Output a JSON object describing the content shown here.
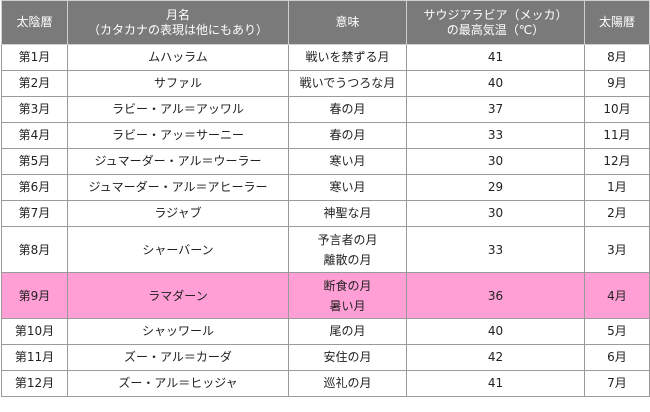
{
  "header": {
    "col1": "太陰暦",
    "col2_line1": "月名",
    "col2_line2": "（カタカナの表現は他にもあり）",
    "col3": "意味",
    "col4_line1": "サウジアラビア（メッカ）",
    "col4_line2": "の最高気温（℃）",
    "col5": "太陽暦"
  },
  "rows": [
    {
      "lunar": "第1月",
      "name": "ムハッラム",
      "meaning": [
        "戦いを禁ずる月"
      ],
      "temp": "41",
      "solar": "8月"
    },
    {
      "lunar": "第2月",
      "name": "サファル",
      "meaning": [
        "戦いでうつろな月"
      ],
      "temp": "40",
      "solar": "9月"
    },
    {
      "lunar": "第3月",
      "name": "ラビー・アル＝アッワル",
      "meaning": [
        "春の月"
      ],
      "temp": "37",
      "solar": "10月"
    },
    {
      "lunar": "第4月",
      "name": "ラビー・アッ＝サーニー",
      "meaning": [
        "春の月"
      ],
      "temp": "33",
      "solar": "11月"
    },
    {
      "lunar": "第5月",
      "name": "ジュマーダー・アル＝ウーラー",
      "meaning": [
        "寒い月"
      ],
      "temp": "30",
      "solar": "12月"
    },
    {
      "lunar": "第6月",
      "name": "ジュマーダー・アル＝アヒーラー",
      "meaning": [
        "寒い月"
      ],
      "temp": "29",
      "solar": "1月"
    },
    {
      "lunar": "第7月",
      "name": "ラジャブ",
      "meaning": [
        "神聖な月"
      ],
      "temp": "30",
      "solar": "2月"
    },
    {
      "lunar": "第8月",
      "name": "シャーバーン",
      "meaning": [
        "予言者の月",
        "離散の月"
      ],
      "temp": "33",
      "solar": "3月"
    },
    {
      "lunar": "第9月",
      "name": "ラマダーン",
      "meaning": [
        "断食の月",
        "暑い月"
      ],
      "temp": "36",
      "solar": "4月"
    },
    {
      "lunar": "第10月",
      "name": "シャッワール",
      "meaning": [
        "尾の月"
      ],
      "temp": "40",
      "solar": "5月"
    },
    {
      "lunar": "第11月",
      "name": "ズー・アル＝カーダ",
      "meaning": [
        "安住の月"
      ],
      "temp": "42",
      "solar": "6月"
    },
    {
      "lunar": "第12月",
      "name": "ズー・アル＝ヒッジャ",
      "meaning": [
        "巡礼の月"
      ],
      "temp": "41",
      "solar": "7月"
    }
  ],
  "highlight_color": "#ff9fd6",
  "header_color": "#7a7a7a"
}
